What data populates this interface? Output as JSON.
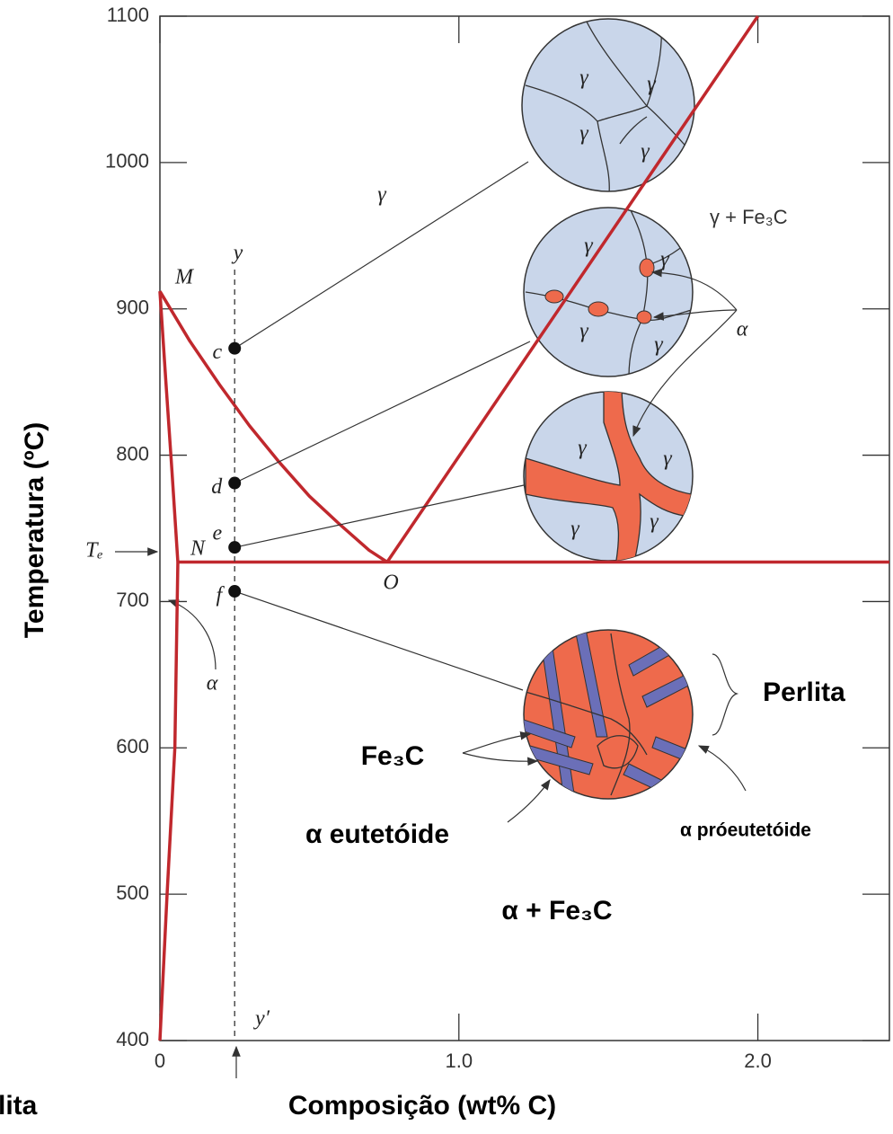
{
  "chart_data": {
    "type": "line",
    "xlabel": "Composição (wt% C)",
    "ylabel": "Temperatura (ºC)",
    "xlim": [
      0,
      2.44
    ],
    "ylim": [
      400,
      1100
    ],
    "xticks": [
      0,
      {
        "value": 1,
        "label": "1.0"
      },
      {
        "value": 2,
        "label": "2.0"
      }
    ],
    "yticks": [
      400,
      500,
      600,
      700,
      800,
      900,
      1000,
      1100
    ],
    "series": [
      {
        "color": "#c0282d",
        "x": [
          0,
          0.1,
          0.2,
          0.3,
          0.4,
          0.5,
          0.6,
          0.7,
          0.76
        ],
        "values": [
          912,
          878,
          848,
          820,
          795,
          772,
          753,
          735,
          727
        ]
      },
      {
        "color": "#c0282d",
        "x": [
          0.76,
          2.0
        ],
        "values": [
          727,
          1100
        ]
      },
      {
        "color": "#c0282d",
        "x": [
          0.06,
          2.44
        ],
        "values": [
          727,
          727
        ]
      },
      {
        "color": "#c0282d",
        "x": [
          0,
          0.02,
          0.04,
          0.06
        ],
        "values": [
          912,
          850,
          790,
          727
        ]
      },
      {
        "color": "#c0282d",
        "x": [
          0.06,
          0.05,
          0.024,
          0
        ],
        "values": [
          727,
          600,
          500,
          400
        ]
      }
    ],
    "markers": {
      "x": [
        0.25,
        0.25,
        0.25,
        0.25
      ],
      "values": [
        873,
        781,
        737,
        707
      ],
      "labels": [
        "c",
        "d",
        "e",
        "f"
      ]
    },
    "annotations": [
      "γ",
      "γ + Fe₃C",
      "M",
      "N",
      "O",
      "Tₑ",
      "α",
      "α",
      "y",
      "y′",
      "Perlita",
      "Fe₃C",
      "α eutetóide",
      "α próeutetóide",
      "α + Fe₃C",
      "lita"
    ],
    "micro_labels": [
      "γ",
      "γ",
      "γ",
      "γ",
      "γ",
      "γ",
      "γ",
      "γ",
      "γ",
      "γ",
      "γ",
      "γ"
    ]
  }
}
